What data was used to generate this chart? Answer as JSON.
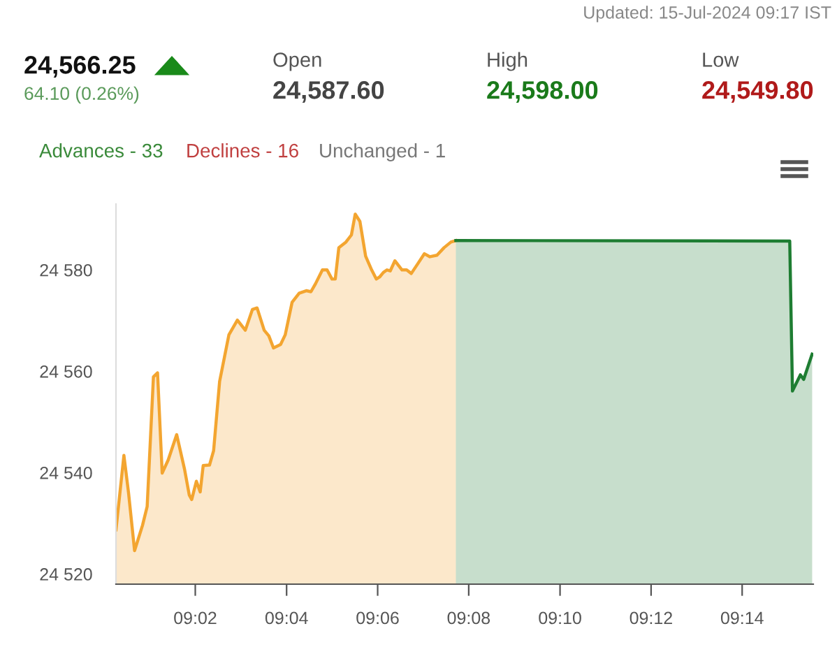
{
  "chart_data": {
    "type": "area",
    "title": "24,566.25",
    "annotations": [
      "Updated: 15-Jul-2024 09:17 IST",
      "64.10 (0.26%)",
      "Open",
      "24,587.60",
      "High",
      "24,598.00",
      "Low",
      "24,549.80",
      "Advances - 33",
      "Declines - 16",
      "Unchanged - 1"
    ],
    "series": [
      {
        "color": "#f3a530",
        "x": [
          9.0043,
          9.0072,
          9.0089,
          9.0111,
          9.014,
          9.0157,
          9.018,
          9.0195,
          9.0212,
          9.0234,
          9.0265,
          9.0294,
          9.0311,
          9.032,
          9.0337,
          9.0351,
          9.0362,
          9.0385,
          9.04,
          9.0422,
          9.0456,
          9.0487,
          9.0516,
          9.0542,
          9.0559,
          9.0585,
          9.0602,
          9.0619,
          9.0645,
          9.0662,
          9.0687,
          9.0713,
          9.0739,
          9.0756,
          9.0773,
          9.0798,
          9.0815,
          9.0833,
          9.0845,
          9.0858,
          9.0884,
          9.0904,
          9.0918,
          9.0935,
          9.0956,
          9.0978,
          9.0995,
          9.1007,
          9.1021,
          9.1034,
          9.1046,
          9.1063,
          9.1089,
          9.1106,
          9.1123,
          9.1149,
          9.1171,
          9.1191,
          9.1217,
          9.1243,
          9.1268,
          9.1286
        ],
        "values": [
          24528.7,
          24543.4,
          24536.0,
          24524.6,
          24529.6,
          24533.3,
          24558.9,
          24559.7,
          24539.9,
          24542.5,
          24547.5,
          24540.6,
          24535.6,
          24534.7,
          24538.3,
          24536.2,
          24541.4,
          24541.5,
          24544.3,
          24558.0,
          24567.2,
          24570.1,
          24568.1,
          24572.2,
          24572.5,
          24568.1,
          24567.0,
          24564.6,
          24565.3,
          24567.2,
          24573.6,
          24575.4,
          24575.9,
          24575.7,
          24577.3,
          24580.0,
          24580.0,
          24578.2,
          24578.2,
          24584.4,
          24585.5,
          24586.9,
          24591.0,
          24589.6,
          24582.7,
          24580.0,
          24578.2,
          24578.6,
          24579.5,
          24580.0,
          24579.8,
          24581.8,
          24580.0,
          24580.0,
          24579.3,
          24581.4,
          24583.2,
          24582.6,
          24582.9,
          24584.4,
          24585.5,
          24585.8
        ]
      },
      {
        "color": "#1e7d32",
        "x": [
          9.1286,
          9.2507,
          9.2517,
          9.2546,
          9.2558,
          9.2589
        ],
        "values": [
          24585.8,
          24585.7,
          24556.1,
          24559.3,
          24558.4,
          24563.4
        ]
      }
    ],
    "xlim": [
      9.0043,
      9.2593
    ],
    "xticks": [
      {
        "value": 9.0333,
        "label": "09:02"
      },
      {
        "value": 9.0667,
        "label": "09:04"
      },
      {
        "value": 9.1,
        "label": "09:06"
      },
      {
        "value": 9.1333,
        "label": "09:08"
      },
      {
        "value": 9.1667,
        "label": "09:10"
      },
      {
        "value": 9.2,
        "label": "09:12"
      },
      {
        "value": 9.2333,
        "label": "09:14"
      }
    ],
    "ylim": [
      24518,
      24593
    ],
    "yticks": [
      {
        "value": 24520,
        "label": "24 520"
      },
      {
        "value": 24540,
        "label": "24 540"
      },
      {
        "value": 24560,
        "label": "24 560"
      },
      {
        "value": 24580,
        "label": "24 580"
      }
    ],
    "grid": false,
    "legend": false
  }
}
